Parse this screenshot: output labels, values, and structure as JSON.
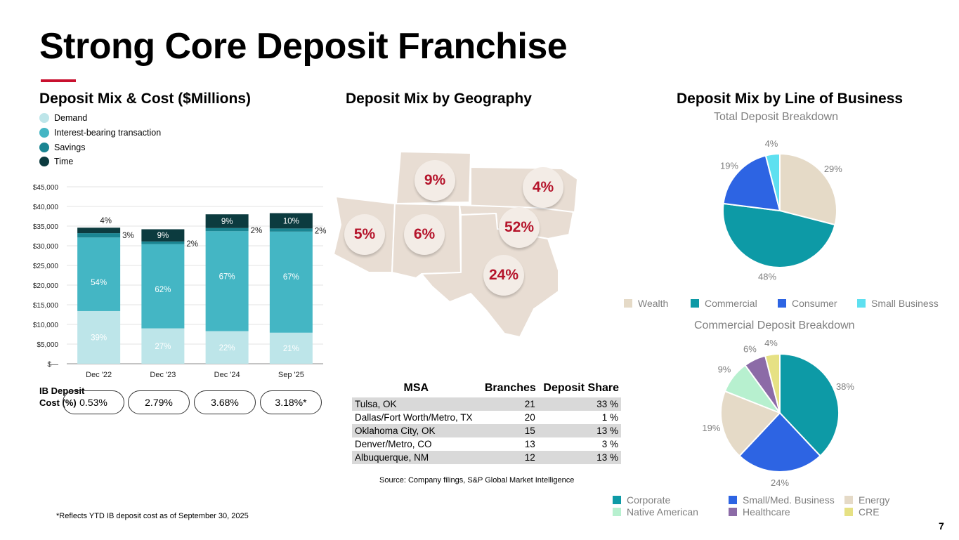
{
  "title": "Strong Core Deposit Franchise",
  "page_number": "7",
  "footnote": "*Reflects YTD IB deposit cost as of September 30, 2025",
  "source": "Source: Company filings, S&P Global Market Intelligence",
  "colors": {
    "accent": "#c8102e",
    "demand": "#bde5e9",
    "ib_transaction": "#44b6c4",
    "savings": "#1a8592",
    "time": "#0c3b3f"
  },
  "deposit_mix": {
    "heading": "Deposit Mix & Cost ($Millions)",
    "legend": [
      "Demand",
      "Interest-bearing transaction",
      "Savings",
      "Time"
    ],
    "ib_label_line1": "IB Deposit",
    "ib_label_line2": "Cost (%)",
    "ib_costs": [
      "0.53%",
      "2.79%",
      "3.68%",
      "3.18%*"
    ]
  },
  "geo": {
    "heading": "Deposit Mix by Geography",
    "badges": [
      "9%",
      "4%",
      "5%",
      "6%",
      "52%",
      "24%"
    ],
    "table_headers": [
      "MSA",
      "Branches",
      "Deposit Share"
    ],
    "rows": [
      {
        "msa": "Tulsa, OK",
        "branches": "21",
        "share": "33 %"
      },
      {
        "msa": "Dallas/Fort Worth/Metro, TX",
        "branches": "20",
        "share": "1 %"
      },
      {
        "msa": "Oklahoma City, OK",
        "branches": "15",
        "share": "13 %"
      },
      {
        "msa": "Denver/Metro, CO",
        "branches": "13",
        "share": "3 %"
      },
      {
        "msa": "Albuquerque, NM",
        "branches": "12",
        "share": "13 %"
      }
    ]
  },
  "lob": {
    "heading": "Deposit Mix by Line of Business",
    "total_title": "Total Deposit Breakdown",
    "commercial_title": "Commercial Deposit Breakdown",
    "total_legend": [
      "Wealth",
      "Commercial",
      "Consumer",
      "Small Business"
    ],
    "commercial_legend": [
      "Corporate",
      "Small/Med. Business",
      "Energy",
      "Native American",
      "Healthcare",
      "CRE"
    ]
  },
  "chart_data": [
    {
      "type": "bar",
      "stacked": true,
      "title": "Deposit Mix & Cost ($Millions)",
      "categories": [
        "Dec '22",
        "Dec '23",
        "Dec '24",
        "Sep '25"
      ],
      "ylim": [
        0,
        45000
      ],
      "yticks": [
        "$—",
        "$5,000",
        "$10,000",
        "$15,000",
        "$20,000",
        "$25,000",
        "$30,000",
        "$35,000",
        "$40,000",
        "$45,000"
      ],
      "series": [
        {
          "name": "Demand",
          "values": [
            13400,
            9000,
            8300,
            7900
          ],
          "labels": [
            "39%",
            "27%",
            "22%",
            "21%"
          ]
        },
        {
          "name": "Interest-bearing transaction",
          "values": [
            18700,
            21400,
            25400,
            25700
          ],
          "labels": [
            "54%",
            "62%",
            "67%",
            "67%"
          ]
        },
        {
          "name": "Savings",
          "values": [
            1100,
            700,
            800,
            800
          ],
          "labels": [
            "3%",
            "2%",
            "2%",
            "2%"
          ]
        },
        {
          "name": "Time",
          "values": [
            1400,
            3100,
            3500,
            3900
          ],
          "labels": [
            "4%",
            "9%",
            "9%",
            "10%"
          ]
        }
      ]
    },
    {
      "type": "pie",
      "title": "Total Deposit Breakdown",
      "categories": [
        "Wealth",
        "Commercial",
        "Consumer",
        "Small Business"
      ],
      "values": [
        29,
        48,
        19,
        4
      ],
      "labels": [
        "29%",
        "48%",
        "19%",
        "4%"
      ],
      "colors": [
        "#e5dac7",
        "#0d9aa6",
        "#2d64e3",
        "#5ee0f0"
      ]
    },
    {
      "type": "pie",
      "title": "Commercial Deposit Breakdown",
      "categories": [
        "Corporate",
        "Small/Med. Business",
        "Energy",
        "Native American",
        "Healthcare",
        "CRE"
      ],
      "values": [
        38,
        24,
        19,
        9,
        6,
        4
      ],
      "labels": [
        "38%",
        "24%",
        "19%",
        "9%",
        "6%",
        "4%"
      ],
      "colors": [
        "#0d9aa6",
        "#2d64e3",
        "#e5dac7",
        "#b7f0cf",
        "#8c6ba7",
        "#e6e184"
      ]
    }
  ]
}
